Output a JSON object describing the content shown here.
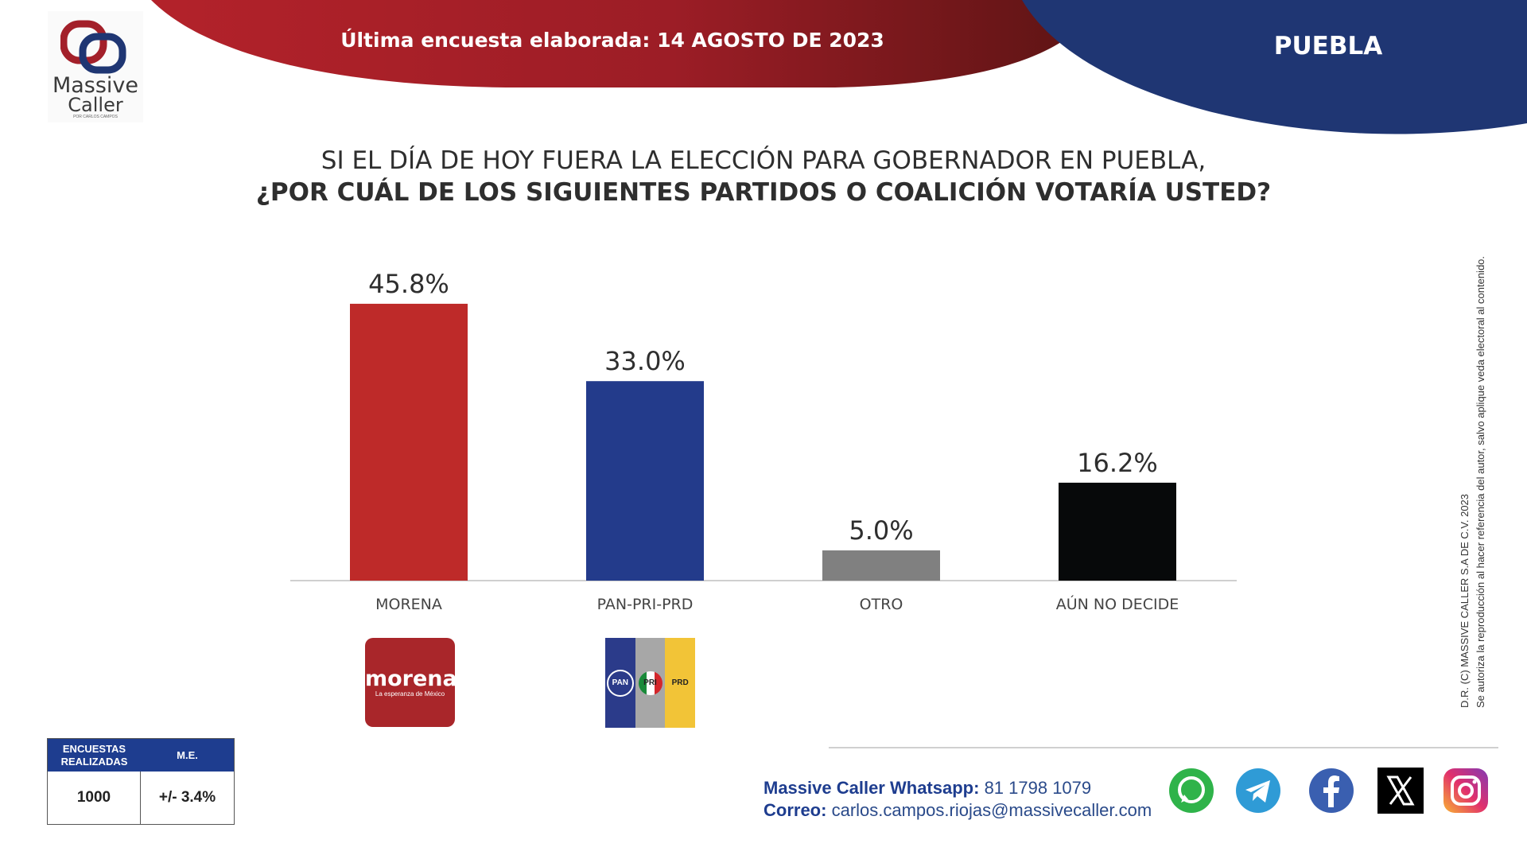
{
  "header": {
    "banner": "Última encuesta elaborada: 14 AGOSTO  DE 2023",
    "region": "PUEBLA"
  },
  "logo": {
    "line1": "Massive",
    "line2": "Caller",
    "tagline": "POR CARLOS CAMPOS"
  },
  "question": {
    "line1": "SI EL DÍA DE HOY FUERA LA ELECCIÓN PARA GOBERNADOR EN PUEBLA,",
    "line2": "¿POR CUÁL DE LOS SIGUIENTES PARTIDOS O COALICIÓN VOTARÍA USTED?"
  },
  "chart_data": {
    "type": "bar",
    "categories": [
      "MORENA",
      "PAN-PRI-PRD",
      "OTRO",
      "AÚN NO DECIDE"
    ],
    "values": [
      45.8,
      33.0,
      5.0,
      16.2
    ],
    "labels": [
      "45.8%",
      "33.0%",
      "5.0%",
      "16.2%"
    ],
    "colors": [
      "#be2a29",
      "#233b8b",
      "#808080",
      "#07090a"
    ],
    "ylim": [
      0,
      50
    ],
    "grid": false,
    "title": "",
    "xlabel": "",
    "ylabel": ""
  },
  "party_logos": {
    "morena": {
      "name": "morena",
      "tagline": "La esperanza de México"
    },
    "coalition": {
      "pan": "PAN",
      "pri": "PRI",
      "prd": "PRD"
    }
  },
  "watermark": {
    "line1": "D.R. (C) MASSIVE CALLER S.A DE C.V. 2023",
    "line2": "Se autoriza la reproducción al hacer referencia del autor, salvo aplique veda electoral al contenido."
  },
  "sample": {
    "header_left": "ENCUESTAS REALIZADAS",
    "header_right": "M.E.",
    "value_left": "1000",
    "value_right": "+/- 3.4%"
  },
  "contact": {
    "whatsapp_label": "Massive Caller Whatsapp:",
    "whatsapp_number": "81 1798 1079",
    "email_label": "Correo:",
    "email": "carlos.campos.riojas@massivecaller.com"
  },
  "social_icons": [
    "whatsapp-icon",
    "telegram-icon",
    "facebook-icon",
    "x-icon",
    "instagram-icon"
  ],
  "brand_colors": {
    "red": "#a3202a",
    "navy": "#1f3673",
    "blue_header": "#1e3d8f"
  }
}
